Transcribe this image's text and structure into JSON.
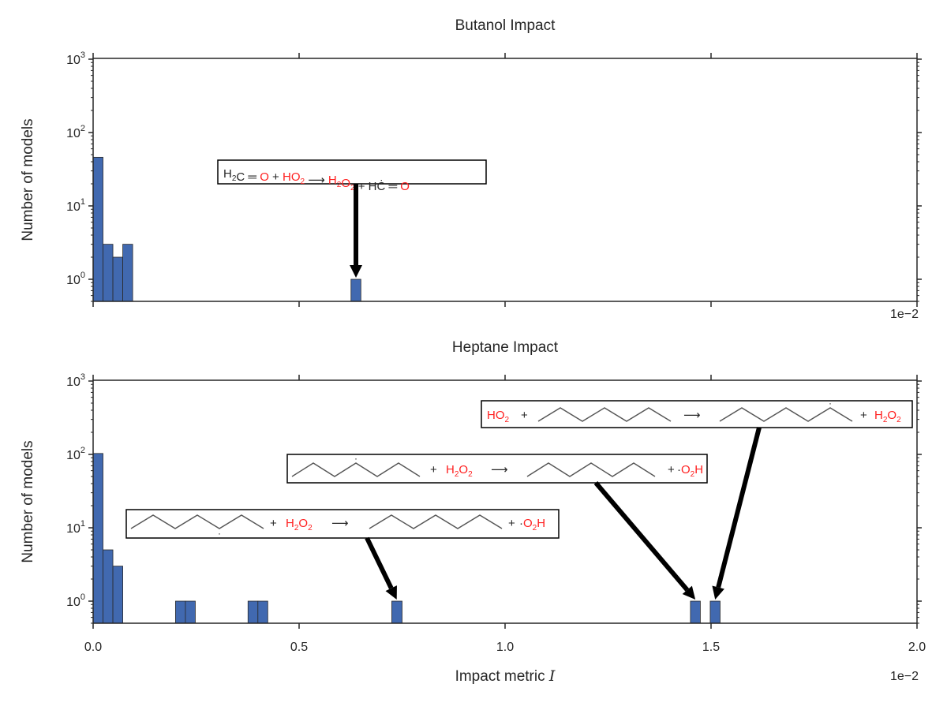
{
  "chart_data": [
    {
      "type": "bar",
      "title": "Butanol Impact",
      "ylabel": "Number of models",
      "xlabel": "",
      "yscale": "log",
      "ylim": [
        0.5,
        1000
      ],
      "xlim": [
        0.0,
        2.0
      ],
      "x_multiplier": "1e−2",
      "yticks": [
        "10",
        "10",
        "10",
        "10"
      ],
      "ytick_exponents": [
        "0",
        "1",
        "2",
        "3"
      ],
      "bar_color": "#4169b0",
      "bars": [
        {
          "x0": 0.0,
          "x1": 0.024,
          "value": 46
        },
        {
          "x0": 0.024,
          "x1": 0.048,
          "value": 3
        },
        {
          "x0": 0.048,
          "x1": 0.072,
          "value": 2
        },
        {
          "x0": 0.072,
          "x1": 0.096,
          "value": 3
        },
        {
          "x0": 0.626,
          "x1": 0.65,
          "value": 1
        }
      ],
      "annotations": [
        {
          "target_x": 0.638,
          "segments": [
            {
              "t": "H",
              "red": false
            },
            {
              "t": "2",
              "red": false,
              "sub": true
            },
            {
              "t": "C",
              "red": false
            },
            {
              "t": "  ═ ",
              "red": false
            },
            {
              "t": "O",
              "red": true
            },
            {
              "t": "  +  ",
              "red": false
            },
            {
              "t": "HO",
              "red": true
            },
            {
              "t": "2",
              "red": true,
              "sub": true
            },
            {
              "t": "   ⟶   ",
              "red": false
            },
            {
              "t": "H",
              "red": true
            },
            {
              "t": "2",
              "red": true,
              "sub": true
            },
            {
              "t": "O",
              "red": true
            },
            {
              "t": "2",
              "red": true,
              "sub": true
            },
            {
              "t": "  +  ",
              "red": false
            },
            {
              "t": "HĊ",
              "red": false
            },
            {
              "t": " ═ ",
              "red": false
            },
            {
              "t": "O",
              "red": true
            }
          ]
        }
      ]
    },
    {
      "type": "bar",
      "title": "Heptane Impact",
      "ylabel": "Number of models",
      "xlabel": "Impact metric I",
      "yscale": "log",
      "ylim": [
        0.5,
        1000
      ],
      "xlim": [
        0.0,
        2.0
      ],
      "x_multiplier": "1e−2",
      "xticks": [
        "0.0",
        "0.5",
        "1.0",
        "1.5",
        "2.0"
      ],
      "yticks": [
        "10",
        "10",
        "10",
        "10"
      ],
      "ytick_exponents": [
        "0",
        "1",
        "2",
        "3"
      ],
      "bar_color": "#4169b0",
      "bars": [
        {
          "x0": 0.0,
          "x1": 0.024,
          "value": 103
        },
        {
          "x0": 0.024,
          "x1": 0.048,
          "value": 5
        },
        {
          "x0": 0.048,
          "x1": 0.072,
          "value": 3
        },
        {
          "x0": 0.2,
          "x1": 0.224,
          "value": 1
        },
        {
          "x0": 0.224,
          "x1": 0.248,
          "value": 1
        },
        {
          "x0": 0.376,
          "x1": 0.4,
          "value": 1
        },
        {
          "x0": 0.4,
          "x1": 0.424,
          "value": 1
        },
        {
          "x0": 0.725,
          "x1": 0.75,
          "value": 1
        },
        {
          "x0": 1.45,
          "x1": 1.474,
          "value": 1
        },
        {
          "x0": 1.498,
          "x1": 1.522,
          "value": 1
        }
      ],
      "annotations": [
        {
          "target_x": 0.737,
          "label_plus": "+",
          "species_mid": "H2O2",
          "species_end": "·O2H"
        },
        {
          "target_x": 1.462,
          "label_plus": "+",
          "species_mid": "H2O2",
          "species_end": "·O2H"
        },
        {
          "target_x": 1.51,
          "label_plus": "+",
          "species_start": "HO2",
          "species_end": "H2O2"
        }
      ]
    }
  ]
}
